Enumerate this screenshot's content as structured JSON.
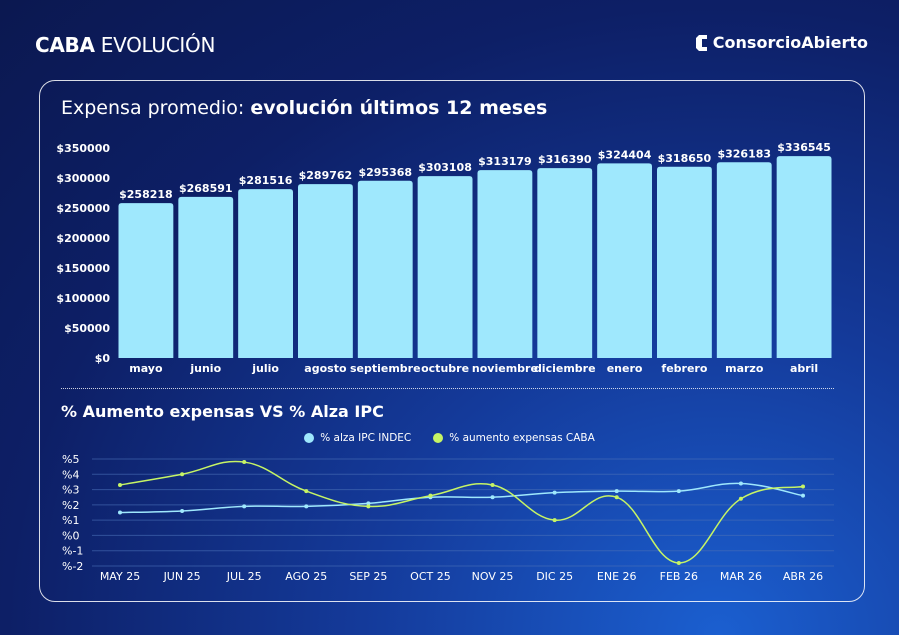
{
  "header": {
    "title_bold": "CABA",
    "title_light": "EVOLUCIÓN",
    "brand": "ConsorcioAbierto"
  },
  "colors": {
    "bar": "#9fe8fd",
    "ipc": "#9fe8fd",
    "expensas": "#c6f465",
    "grid": "#4a6fb8"
  },
  "chart_data": [
    {
      "type": "bar",
      "title_light": "Expensa promedio: ",
      "title_bold": "evolución últimos 12 meses",
      "categories": [
        "mayo",
        "junio",
        "julio",
        "agosto",
        "septiembre",
        "octubre",
        "noviembre",
        "diciembre",
        "enero",
        "febrero",
        "marzo",
        "abril"
      ],
      "values": [
        258218,
        268591,
        281516,
        289762,
        295368,
        303108,
        313179,
        316390,
        324404,
        318650,
        326183,
        336545
      ],
      "value_labels": [
        "$258218",
        "$268591",
        "$281516",
        "$289762",
        "$295368",
        "$303108",
        "$313179",
        "$316390",
        "$324404",
        "$318650",
        "$326183",
        "$336545"
      ],
      "ylim": [
        0,
        350000
      ],
      "yticks": [
        0,
        50000,
        100000,
        150000,
        200000,
        250000,
        300000,
        350000
      ],
      "ytick_labels": [
        "$0",
        "$50000",
        "$100000",
        "$150000",
        "$200000",
        "$250000",
        "$300000",
        "$350000"
      ]
    },
    {
      "type": "line",
      "title": "% Aumento expensas VS % Alza IPC",
      "categories": [
        "MAY 25",
        "JUN 25",
        "JUL 25",
        "AGO 25",
        "SEP 25",
        "OCT 25",
        "NOV 25",
        "DIC 25",
        "ENE 26",
        "FEB 26",
        "MAR 26",
        "ABR 26"
      ],
      "series": [
        {
          "name": "% alza IPC INDEC",
          "values": [
            1.5,
            1.6,
            1.9,
            1.9,
            2.1,
            2.5,
            2.5,
            2.8,
            2.9,
            2.9,
            3.4,
            2.6
          ]
        },
        {
          "name": "% aumento expensas CABA",
          "values": [
            3.3,
            4.0,
            4.8,
            2.9,
            1.9,
            2.6,
            3.3,
            1.0,
            2.5,
            -1.8,
            2.4,
            3.2
          ]
        }
      ],
      "ylim": [
        -2,
        5
      ],
      "yticks": [
        -2,
        -1,
        0,
        1,
        2,
        3,
        4,
        5
      ],
      "ytick_labels": [
        "%-2",
        "%-1",
        "%0",
        "%1",
        "%2",
        "%3",
        "%4",
        "%5"
      ],
      "legend": "top"
    }
  ]
}
